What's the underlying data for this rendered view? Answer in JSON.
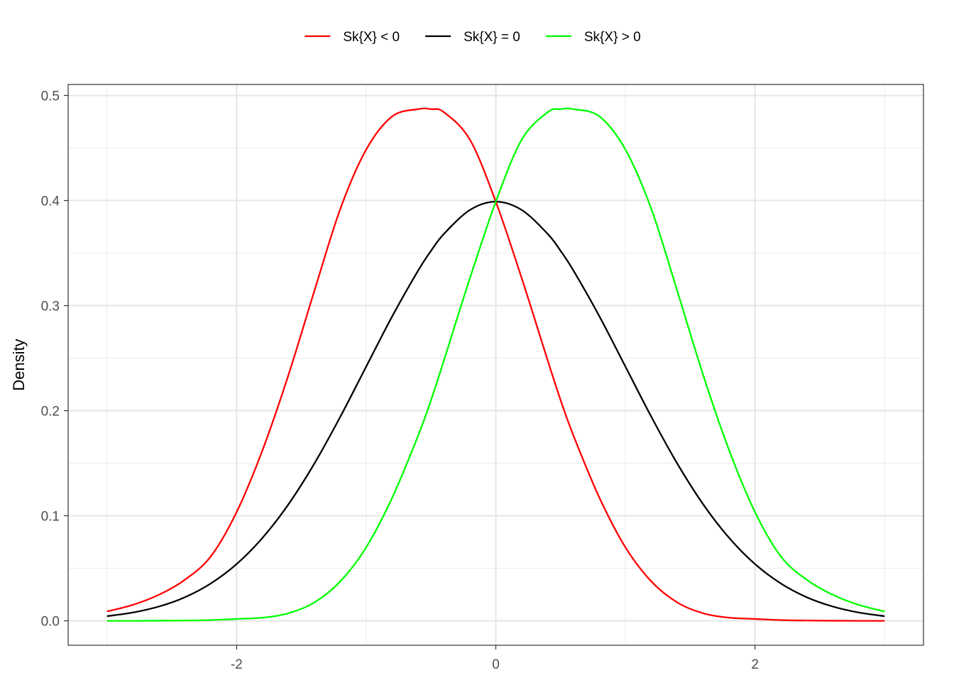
{
  "chart_data": {
    "type": "line",
    "title": "",
    "xlabel": "",
    "ylabel": "Density",
    "xlim": [
      -3,
      3
    ],
    "ylim": [
      0,
      0.5
    ],
    "x_ticks": [
      -2,
      0,
      2
    ],
    "x_tick_labels": [
      "-2",
      "0",
      "2"
    ],
    "y_ticks": [
      0,
      0.1,
      0.2,
      0.3,
      0.4,
      0.5
    ],
    "y_tick_labels": [
      "0.0",
      "0.1",
      "0.2",
      "0.3",
      "0.4",
      "0.5"
    ],
    "grid": true,
    "legend_position": "top",
    "x": [
      -3.0,
      -2.8,
      -2.6,
      -2.4,
      -2.2,
      -2.0,
      -1.8,
      -1.6,
      -1.4,
      -1.2,
      -1.0,
      -0.8,
      -0.6,
      -0.5,
      -0.4,
      -0.2,
      0.0,
      0.2,
      0.4,
      0.5,
      0.6,
      0.8,
      1.0,
      1.2,
      1.4,
      1.6,
      1.8,
      2.0,
      2.2,
      2.4,
      2.6,
      2.8,
      3.0
    ],
    "series": [
      {
        "name": "Sk{X} < 0",
        "color": "#ff0000",
        "values": [
          0.0089,
          0.0152,
          0.0248,
          0.039,
          0.0612,
          0.1035,
          0.1625,
          0.234,
          0.314,
          0.392,
          0.4485,
          0.48,
          0.487,
          0.487,
          0.484,
          0.458,
          0.3989,
          0.326,
          0.248,
          0.21,
          0.176,
          0.117,
          0.07,
          0.0375,
          0.0175,
          0.0072,
          0.003,
          0.0018,
          0.0007,
          0.0003,
          0.0001,
          0.0,
          0.0
        ]
      },
      {
        "name": "Sk{X} = 0",
        "color": "#000000",
        "values": [
          0.0044,
          0.0079,
          0.0136,
          0.0224,
          0.0355,
          0.054,
          0.079,
          0.1109,
          0.1497,
          0.1942,
          0.242,
          0.2897,
          0.3332,
          0.3521,
          0.3683,
          0.391,
          0.3989,
          0.391,
          0.3683,
          0.3521,
          0.3332,
          0.2897,
          0.242,
          0.1942,
          0.1497,
          0.1109,
          0.079,
          0.054,
          0.0355,
          0.0224,
          0.0136,
          0.0079,
          0.0044
        ]
      },
      {
        "name": "Sk{X} > 0",
        "color": "#00ff00",
        "values": [
          0.0,
          0.0,
          0.0001,
          0.0003,
          0.0007,
          0.0018,
          0.003,
          0.0072,
          0.0175,
          0.0375,
          0.07,
          0.117,
          0.176,
          0.21,
          0.248,
          0.326,
          0.3989,
          0.458,
          0.484,
          0.487,
          0.487,
          0.48,
          0.4485,
          0.392,
          0.314,
          0.234,
          0.1625,
          0.1035,
          0.0612,
          0.039,
          0.0248,
          0.0152,
          0.0089
        ]
      }
    ]
  }
}
